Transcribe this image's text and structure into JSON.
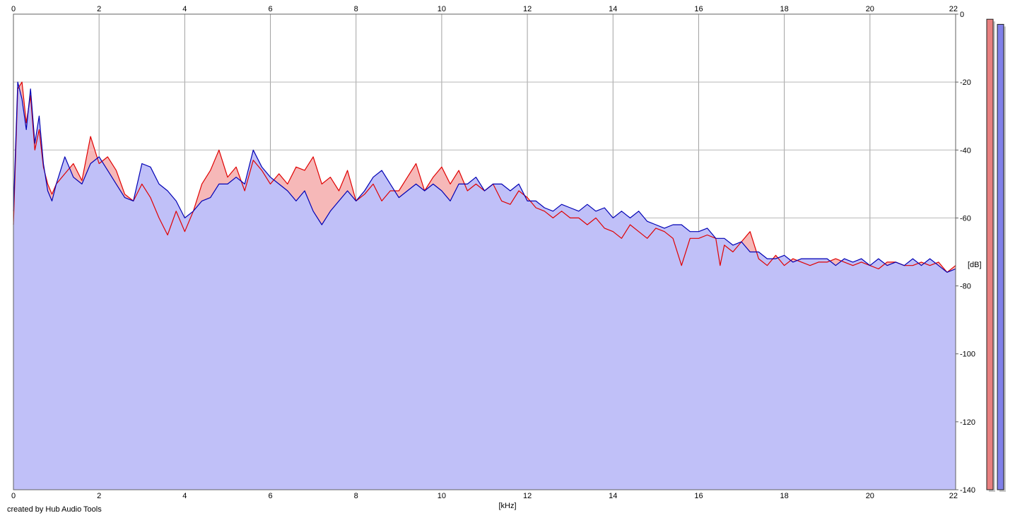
{
  "chart_data": {
    "type": "area",
    "xlabel": "[kHz]",
    "ylabel": "[dB]",
    "xlim": [
      0,
      22
    ],
    "ylim": [
      -140,
      0
    ],
    "xticks": [
      0,
      2,
      4,
      6,
      8,
      10,
      12,
      14,
      16,
      18,
      20,
      22
    ],
    "yticks": [
      0,
      -20,
      -40,
      -60,
      -80,
      -100,
      -120,
      -140
    ],
    "grid": true,
    "series": [
      {
        "color": "#e00000",
        "fill": "#f6b8b8",
        "points": [
          [
            0,
            -62
          ],
          [
            0.1,
            -22
          ],
          [
            0.2,
            -20
          ],
          [
            0.3,
            -32
          ],
          [
            0.4,
            -24
          ],
          [
            0.5,
            -40
          ],
          [
            0.6,
            -34
          ],
          [
            0.7,
            -45
          ],
          [
            0.8,
            -50
          ],
          [
            0.9,
            -53
          ],
          [
            1.0,
            -50
          ],
          [
            1.2,
            -47
          ],
          [
            1.4,
            -44
          ],
          [
            1.6,
            -49
          ],
          [
            1.8,
            -36
          ],
          [
            2.0,
            -44
          ],
          [
            2.2,
            -42
          ],
          [
            2.4,
            -46
          ],
          [
            2.6,
            -53
          ],
          [
            2.8,
            -55
          ],
          [
            3.0,
            -50
          ],
          [
            3.2,
            -54
          ],
          [
            3.4,
            -60
          ],
          [
            3.6,
            -65
          ],
          [
            3.8,
            -58
          ],
          [
            4.0,
            -64
          ],
          [
            4.2,
            -58
          ],
          [
            4.4,
            -50
          ],
          [
            4.6,
            -46
          ],
          [
            4.8,
            -40
          ],
          [
            5.0,
            -48
          ],
          [
            5.2,
            -45
          ],
          [
            5.4,
            -52
          ],
          [
            5.6,
            -43
          ],
          [
            5.8,
            -46
          ],
          [
            6.0,
            -50
          ],
          [
            6.2,
            -47
          ],
          [
            6.4,
            -50
          ],
          [
            6.6,
            -45
          ],
          [
            6.8,
            -46
          ],
          [
            7.0,
            -42
          ],
          [
            7.2,
            -50
          ],
          [
            7.4,
            -48
          ],
          [
            7.6,
            -52
          ],
          [
            7.8,
            -46
          ],
          [
            8.0,
            -55
          ],
          [
            8.2,
            -53
          ],
          [
            8.4,
            -50
          ],
          [
            8.6,
            -55
          ],
          [
            8.8,
            -52
          ],
          [
            9.0,
            -52
          ],
          [
            9.2,
            -48
          ],
          [
            9.4,
            -44
          ],
          [
            9.6,
            -52
          ],
          [
            9.8,
            -48
          ],
          [
            10.0,
            -45
          ],
          [
            10.2,
            -50
          ],
          [
            10.4,
            -46
          ],
          [
            10.6,
            -52
          ],
          [
            10.8,
            -50
          ],
          [
            11.0,
            -52
          ],
          [
            11.2,
            -50
          ],
          [
            11.4,
            -55
          ],
          [
            11.6,
            -56
          ],
          [
            11.8,
            -52
          ],
          [
            12.0,
            -54
          ],
          [
            12.2,
            -57
          ],
          [
            12.4,
            -58
          ],
          [
            12.6,
            -60
          ],
          [
            12.8,
            -58
          ],
          [
            13.0,
            -60
          ],
          [
            13.2,
            -60
          ],
          [
            13.4,
            -62
          ],
          [
            13.6,
            -60
          ],
          [
            13.8,
            -63
          ],
          [
            14.0,
            -64
          ],
          [
            14.2,
            -66
          ],
          [
            14.4,
            -62
          ],
          [
            14.6,
            -64
          ],
          [
            14.8,
            -66
          ],
          [
            15.0,
            -63
          ],
          [
            15.2,
            -64
          ],
          [
            15.4,
            -66
          ],
          [
            15.6,
            -74
          ],
          [
            15.8,
            -66
          ],
          [
            16.0,
            -66
          ],
          [
            16.2,
            -65
          ],
          [
            16.4,
            -66
          ],
          [
            16.5,
            -74
          ],
          [
            16.6,
            -68
          ],
          [
            16.8,
            -70
          ],
          [
            17.0,
            -67
          ],
          [
            17.2,
            -64
          ],
          [
            17.4,
            -72
          ],
          [
            17.6,
            -74
          ],
          [
            17.8,
            -71
          ],
          [
            18.0,
            -74
          ],
          [
            18.2,
            -72
          ],
          [
            18.4,
            -73
          ],
          [
            18.6,
            -74
          ],
          [
            18.8,
            -73
          ],
          [
            19.0,
            -73
          ],
          [
            19.2,
            -72
          ],
          [
            19.4,
            -73
          ],
          [
            19.6,
            -74
          ],
          [
            19.8,
            -73
          ],
          [
            20.0,
            -74
          ],
          [
            20.2,
            -75
          ],
          [
            20.4,
            -73
          ],
          [
            20.6,
            -73
          ],
          [
            20.8,
            -74
          ],
          [
            21.0,
            -74
          ],
          [
            21.2,
            -73
          ],
          [
            21.4,
            -74
          ],
          [
            21.6,
            -73
          ],
          [
            21.8,
            -76
          ],
          [
            22.0,
            -74
          ]
        ]
      },
      {
        "color": "#0000b4",
        "fill": "#c0c0f8",
        "points": [
          [
            0,
            -58
          ],
          [
            0.1,
            -20
          ],
          [
            0.2,
            -25
          ],
          [
            0.3,
            -34
          ],
          [
            0.4,
            -22
          ],
          [
            0.5,
            -38
          ],
          [
            0.6,
            -30
          ],
          [
            0.7,
            -44
          ],
          [
            0.8,
            -52
          ],
          [
            0.9,
            -55
          ],
          [
            1.0,
            -50
          ],
          [
            1.2,
            -42
          ],
          [
            1.4,
            -48
          ],
          [
            1.6,
            -50
          ],
          [
            1.8,
            -44
          ],
          [
            2.0,
            -42
          ],
          [
            2.2,
            -46
          ],
          [
            2.4,
            -50
          ],
          [
            2.6,
            -54
          ],
          [
            2.8,
            -55
          ],
          [
            3.0,
            -44
          ],
          [
            3.2,
            -45
          ],
          [
            3.4,
            -50
          ],
          [
            3.6,
            -52
          ],
          [
            3.8,
            -55
          ],
          [
            4.0,
            -60
          ],
          [
            4.2,
            -58
          ],
          [
            4.4,
            -55
          ],
          [
            4.6,
            -54
          ],
          [
            4.8,
            -50
          ],
          [
            5.0,
            -50
          ],
          [
            5.2,
            -48
          ],
          [
            5.4,
            -50
          ],
          [
            5.6,
            -40
          ],
          [
            5.8,
            -45
          ],
          [
            6.0,
            -48
          ],
          [
            6.2,
            -50
          ],
          [
            6.4,
            -52
          ],
          [
            6.6,
            -55
          ],
          [
            6.8,
            -52
          ],
          [
            7.0,
            -58
          ],
          [
            7.2,
            -62
          ],
          [
            7.4,
            -58
          ],
          [
            7.6,
            -55
          ],
          [
            7.8,
            -52
          ],
          [
            8.0,
            -55
          ],
          [
            8.2,
            -52
          ],
          [
            8.4,
            -48
          ],
          [
            8.6,
            -46
          ],
          [
            8.8,
            -50
          ],
          [
            9.0,
            -54
          ],
          [
            9.2,
            -52
          ],
          [
            9.4,
            -50
          ],
          [
            9.6,
            -52
          ],
          [
            9.8,
            -50
          ],
          [
            10.0,
            -52
          ],
          [
            10.2,
            -55
          ],
          [
            10.4,
            -50
          ],
          [
            10.6,
            -50
          ],
          [
            10.8,
            -48
          ],
          [
            11.0,
            -52
          ],
          [
            11.2,
            -50
          ],
          [
            11.4,
            -50
          ],
          [
            11.6,
            -52
          ],
          [
            11.8,
            -50
          ],
          [
            12.0,
            -55
          ],
          [
            12.2,
            -55
          ],
          [
            12.4,
            -57
          ],
          [
            12.6,
            -58
          ],
          [
            12.8,
            -56
          ],
          [
            13.0,
            -57
          ],
          [
            13.2,
            -58
          ],
          [
            13.4,
            -56
          ],
          [
            13.6,
            -58
          ],
          [
            13.8,
            -57
          ],
          [
            14.0,
            -60
          ],
          [
            14.2,
            -58
          ],
          [
            14.4,
            -60
          ],
          [
            14.6,
            -58
          ],
          [
            14.8,
            -61
          ],
          [
            15.0,
            -62
          ],
          [
            15.2,
            -63
          ],
          [
            15.4,
            -62
          ],
          [
            15.6,
            -62
          ],
          [
            15.8,
            -64
          ],
          [
            16.0,
            -64
          ],
          [
            16.2,
            -63
          ],
          [
            16.4,
            -66
          ],
          [
            16.6,
            -66
          ],
          [
            16.8,
            -68
          ],
          [
            17.0,
            -67
          ],
          [
            17.2,
            -70
          ],
          [
            17.4,
            -70
          ],
          [
            17.6,
            -72
          ],
          [
            17.8,
            -72
          ],
          [
            18.0,
            -71
          ],
          [
            18.2,
            -73
          ],
          [
            18.4,
            -72
          ],
          [
            18.6,
            -72
          ],
          [
            18.8,
            -72
          ],
          [
            19.0,
            -72
          ],
          [
            19.2,
            -74
          ],
          [
            19.4,
            -72
          ],
          [
            19.6,
            -73
          ],
          [
            19.8,
            -72
          ],
          [
            20.0,
            -74
          ],
          [
            20.2,
            -72
          ],
          [
            20.4,
            -74
          ],
          [
            20.6,
            -73
          ],
          [
            20.8,
            -74
          ],
          [
            21.0,
            -72
          ],
          [
            21.2,
            -74
          ],
          [
            21.4,
            -72
          ],
          [
            21.6,
            -74
          ],
          [
            21.8,
            -76
          ],
          [
            22.0,
            -75
          ]
        ]
      }
    ],
    "level_meters": [
      {
        "color": "#e88080",
        "level_db": -1.5
      },
      {
        "color": "#8080e8",
        "level_db": -3
      }
    ]
  },
  "footer": {
    "credit": "created by Hub Audio Tools"
  }
}
